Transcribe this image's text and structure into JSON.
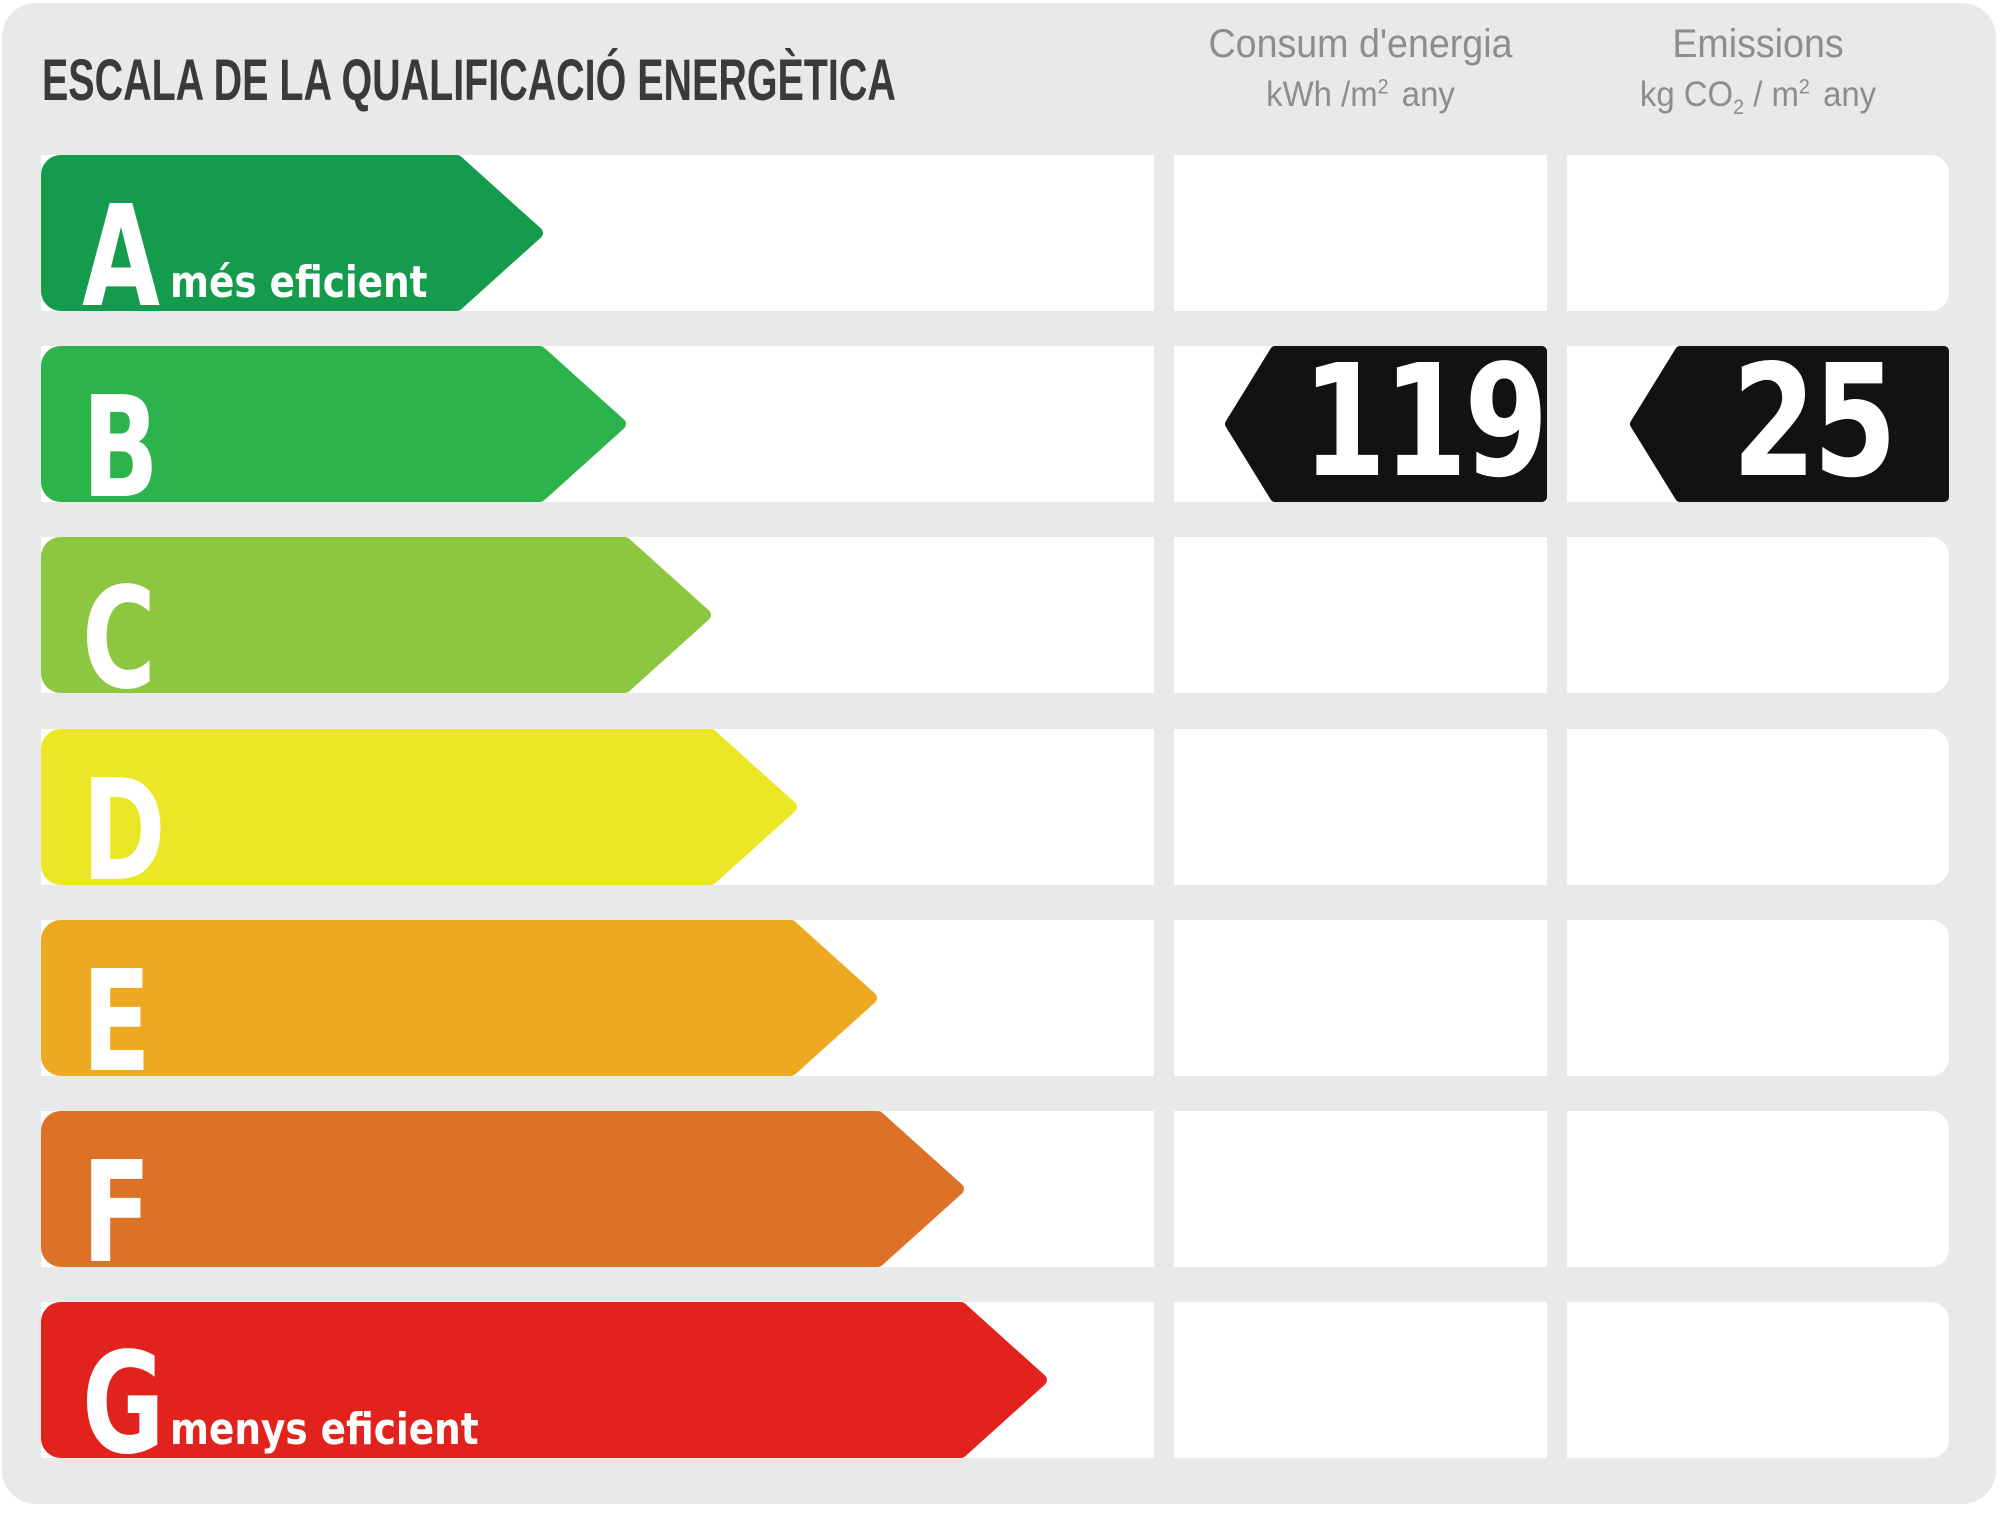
{
  "title": "ESCALA DE LA QUALIFICACIÓ ENERGÈTICA",
  "columns": {
    "energy": {
      "title": "Consum d'energia",
      "unit": {
        "main": "kWh /m",
        "sup": "2",
        "tail": "any"
      }
    },
    "emissions": {
      "title": "Emissions",
      "unit": {
        "a": "kg CO",
        "sub": "2",
        "b": " / m",
        "sup": "2",
        "tail": "any"
      }
    }
  },
  "scale": {
    "rows": [
      {
        "letter": "A",
        "note": "més eficient",
        "color": "#149B4D",
        "tip": 541,
        "energy": null,
        "emissions": null
      },
      {
        "letter": "B",
        "note": null,
        "color": "#2DB34B",
        "tip": 624,
        "energy": "119",
        "emissions": "25"
      },
      {
        "letter": "C",
        "note": null,
        "color": "#8DC63F",
        "tip": 709,
        "energy": null,
        "emissions": null
      },
      {
        "letter": "D",
        "note": null,
        "color": "#ECE726",
        "tip": 795,
        "energy": null,
        "emissions": null
      },
      {
        "letter": "E",
        "note": null,
        "color": "#EDA920",
        "tip": 875,
        "energy": null,
        "emissions": null
      },
      {
        "letter": "F",
        "note": null,
        "color": "#DD7126",
        "tip": 962,
        "energy": null,
        "emissions": null
      },
      {
        "letter": "G",
        "note": "menys eficient",
        "color": "#E2231D",
        "tip": 1045,
        "energy": null,
        "emissions": null
      }
    ]
  },
  "badge_color": "#121212",
  "card_background": "#E8E9E9",
  "chart_data": {
    "type": "bar",
    "title": "ESCALA DE LA QUALIFICACIÓ ENERGÈTICA",
    "orientation": "horizontal",
    "categories": [
      "A",
      "B",
      "C",
      "D",
      "E",
      "F",
      "G"
    ],
    "category_notes": {
      "A": "més eficient",
      "G": "menys eficient"
    },
    "values_relative_bar_length": [
      541,
      624,
      709,
      795,
      875,
      962,
      1045
    ],
    "bar_colors": [
      "#149B4D",
      "#2DB34B",
      "#8DC63F",
      "#ECE726",
      "#EDA920",
      "#DD7126",
      "#E2231D"
    ],
    "rating": "B",
    "annotations": [
      {
        "row": "B",
        "column": "Consum d'energia kWh/m2 any",
        "value": 119
      },
      {
        "row": "B",
        "column": "Emissions kg CO2/m2 any",
        "value": 25
      }
    ],
    "legend_position": "none",
    "grid": false
  }
}
